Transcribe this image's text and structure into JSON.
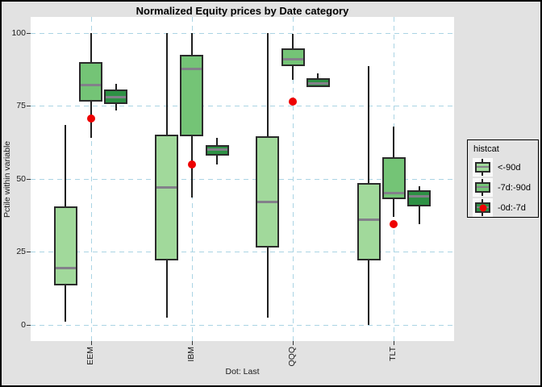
{
  "chart_data": {
    "type": "grouped_boxplot_with_points",
    "title": "Normalized Equity prices by Date category",
    "ylabel": "Pctile within variable",
    "xlabel": "Dot: Last",
    "ylim": [
      0,
      100
    ],
    "yticks": [
      0,
      25,
      50,
      75,
      100
    ],
    "grid": "dashed",
    "grid_color": "#aad4e4",
    "legend_position": "right",
    "categories": [
      "EEM",
      "IBM",
      "QQQ",
      "TLT"
    ],
    "box_stats_order": [
      "whisker_low",
      "q1",
      "median",
      "q3",
      "whisker_high"
    ],
    "series": [
      {
        "name": "<-90d",
        "color": "#a1d99b",
        "boxes": [
          [
            1,
            13.5,
            19.5,
            40.5,
            68.5
          ],
          [
            2.5,
            22,
            47,
            65,
            100
          ],
          [
            2.5,
            26.5,
            42,
            64.5,
            100
          ],
          [
            0,
            22,
            36,
            48.5,
            88.5
          ]
        ]
      },
      {
        "name": "-7d:-90d",
        "color": "#74c476",
        "boxes": [
          [
            64,
            76.5,
            82,
            90,
            100
          ],
          [
            43.5,
            64.5,
            87.5,
            92.5,
            100
          ],
          [
            84,
            88.5,
            91,
            94.5,
            99.5
          ],
          [
            37,
            43,
            45,
            57.5,
            68
          ]
        ]
      },
      {
        "name": "-0d:-7d",
        "color": "#2d9144",
        "boxes": [
          [
            73.5,
            75.5,
            78,
            80.5,
            82.5
          ],
          [
            55,
            58,
            60,
            61.5,
            64
          ],
          [
            81.5,
            81.5,
            82.5,
            84.5,
            86
          ],
          [
            34.5,
            40.5,
            44,
            46,
            47.5
          ]
        ]
      }
    ],
    "dots": {
      "name": "Last",
      "color": "#ee0202",
      "values": [
        70.5,
        55,
        76.5,
        34.5
      ]
    }
  },
  "legend": {
    "title": "histcat",
    "items": [
      {
        "label": "<-90d",
        "color": "#a1d99b",
        "dot": false
      },
      {
        "label": "-7d:-90d",
        "color": "#74c476",
        "dot": false
      },
      {
        "label": "-0d:-7d",
        "color": "#2d9144",
        "dot": true
      }
    ]
  }
}
